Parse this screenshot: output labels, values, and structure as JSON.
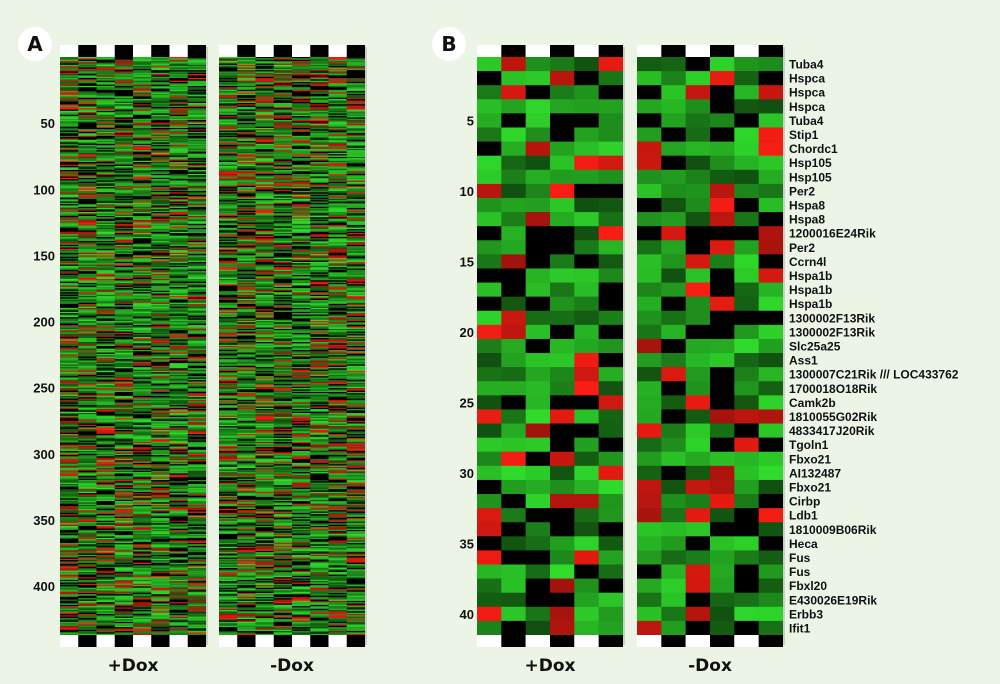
{
  "panels": {
    "a_label": "A",
    "b_label": "B"
  },
  "chart_data": [
    {
      "type": "heatmap",
      "panel": "A",
      "conditions": [
        "+Dox",
        "-Dox"
      ],
      "rows": 437,
      "columns_per_condition": 4,
      "y_ticks": [
        50,
        100,
        150,
        200,
        250,
        300,
        350,
        400
      ],
      "colors": {
        "up": "#ff2a1a",
        "down": "#39d13a",
        "neutral": "#000000"
      }
    },
    {
      "type": "heatmap",
      "panel": "B",
      "conditions": [
        "+Dox",
        "-Dox"
      ],
      "columns_per_condition": 6,
      "y_ticks": [
        5,
        10,
        15,
        20,
        25,
        30,
        35,
        40
      ],
      "genes": [
        "Tuba4",
        "Hspca",
        "Hspca",
        "Hspca",
        "Tuba4",
        "Stip1",
        "Chordc1",
        "Hsp105",
        "Hsp105",
        "Per2",
        "Hspa8",
        "Hspa8",
        "1200016E24Rik",
        "Per2",
        "Ccrn4l",
        "Hspa1b",
        "Hspa1b",
        "Hspa1b",
        "1300002F13Rik",
        "1300002F13Rik",
        "Slc25a25",
        "Ass1",
        "1300007C21Rik /// LOC433762",
        "1700018O18Rik",
        "Camk2b",
        "1810055G02Rik",
        "4833417J20Rik",
        "Tgoln1",
        "Fbxo21",
        "AI132487",
        "Fbxo21",
        "Cirbp",
        "Ldb1",
        "1810009B06Rik",
        "Heca",
        "Fus",
        "Fus",
        "Fbxl20",
        "E430026E19Rik",
        "Erbb3",
        "Ifit1"
      ],
      "colors": {
        "up": "#ff2a1a",
        "down": "#39d13a",
        "neutral": "#000000"
      }
    }
  ]
}
